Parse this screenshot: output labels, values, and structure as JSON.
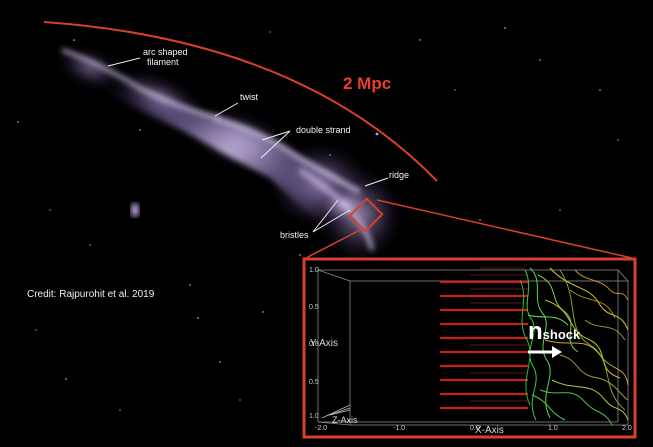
{
  "scale_label": "2 Mpc",
  "credit": "Credit: Rajpurohit et al. 2019",
  "annotations": [
    "arc shaped\nfilament",
    "twist",
    "double strand",
    "ridge",
    "bristles"
  ],
  "annotation_lines": [
    "arc shaped",
    "filament"
  ],
  "inset": {
    "normal_label": "n",
    "normal_subscript": "shock",
    "x_axis_label": "X-Axis",
    "y_axis_label": "Y-Axis",
    "z_axis_label": "Z-Axis",
    "x_ticks": [
      "-2.0",
      "-1.0",
      "0.0",
      "1.0",
      "2.0"
    ],
    "y_ticks": [
      "1.0",
      "0.5",
      "0.0",
      "0.5",
      "1.0"
    ]
  },
  "colors": {
    "arc": "#d8402a",
    "inset_border": "#d8402a",
    "filament_glow": "#9d8ec4",
    "field_lines_red": "#d42020",
    "field_lines_green": "#3cc83c",
    "field_lines_yellow": "#d8c830"
  }
}
